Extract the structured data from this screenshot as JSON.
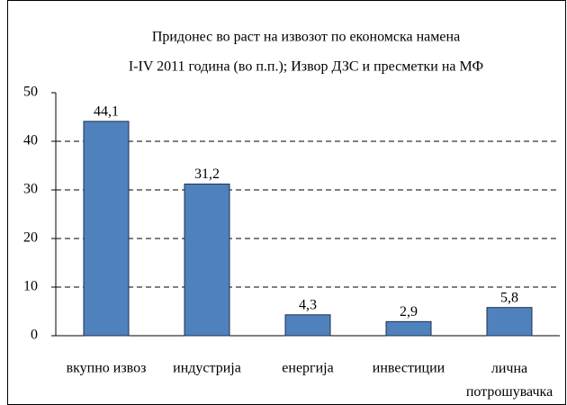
{
  "chart_data": {
    "type": "bar",
    "title": "Придонес во раст на извозот по економска намена",
    "subtitle": "I-IV 2011 година (во п.п.); Извор ДЗС и пресметки на МФ",
    "categories": [
      "вкупно извоз",
      "индустрија",
      "енергија",
      "инвестиции",
      "лична потрошувачка"
    ],
    "values": [
      44.1,
      31.2,
      4.3,
      2.9,
      5.8
    ],
    "value_labels": [
      "44,1",
      "31,2",
      "4,3",
      "2,9",
      "5,8"
    ],
    "color": "#4f81bd",
    "ylim": [
      0,
      50
    ],
    "yticks": [
      0,
      10,
      20,
      30,
      40,
      50
    ],
    "grid": true
  }
}
